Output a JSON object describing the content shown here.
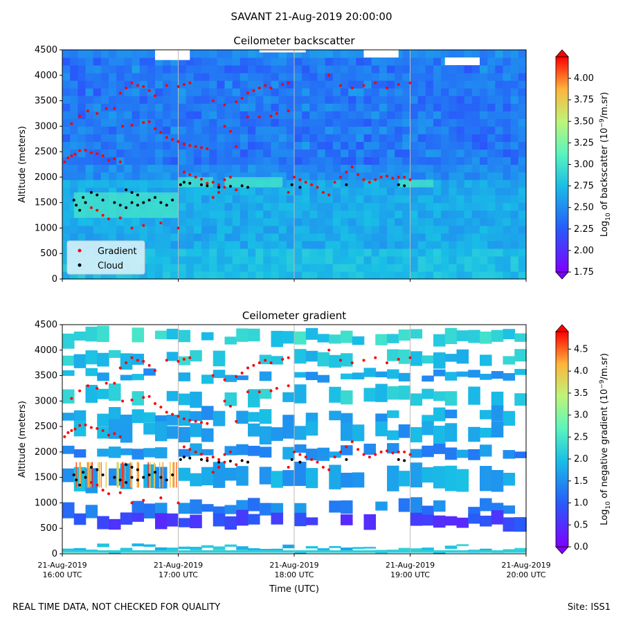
{
  "figure": {
    "title": "SAVANT 21-Aug-2019 20:00:00",
    "footer_left": "REAL TIME DATA, NOT CHECKED FOR QUALITY",
    "footer_right": "Site: ISS1"
  },
  "chart_data": [
    {
      "type": "heatmap",
      "title": "Ceilometer backscatter",
      "xlabel": "",
      "ylabel": "Altitude (meters)",
      "ylim": [
        0,
        4500
      ],
      "y_ticks": [
        "0",
        "500",
        "1000",
        "1500",
        "2000",
        "2500",
        "3000",
        "3500",
        "4000",
        "4500"
      ],
      "x_ticks": [],
      "grid": "vertical lines at hour ticks",
      "colorbar": {
        "label_prefix": "Log",
        "label_sub": "10",
        "label_mid": " of backscatter (10",
        "label_sup": "−9",
        "label_suffix": "/m.sr)",
        "range": [
          1.75,
          4.25
        ],
        "ticks": [
          "1.75",
          "2.00",
          "2.25",
          "2.50",
          "2.75",
          "3.00",
          "3.25",
          "3.50",
          "3.75",
          "4.00"
        ]
      },
      "legend": {
        "placement": "lower-left",
        "entries": [
          {
            "label": "Gradient",
            "color": "#ff0000"
          },
          {
            "label": "Cloud",
            "color": "#000000"
          }
        ]
      }
    },
    {
      "type": "heatmap",
      "title": "Ceilometer gradient",
      "xlabel": "Time (UTC)",
      "ylabel": "Altitude (meters)",
      "ylim": [
        0,
        4500
      ],
      "y_ticks": [
        "0",
        "500",
        "1000",
        "1500",
        "2000",
        "2500",
        "3000",
        "3500",
        "4000",
        "4500"
      ],
      "x_ticks": [
        {
          "l1": "21-Aug-2019",
          "l2": "16:00 UTC"
        },
        {
          "l1": "21-Aug-2019",
          "l2": "17:00 UTC"
        },
        {
          "l1": "21-Aug-2019",
          "l2": "18:00 UTC"
        },
        {
          "l1": "21-Aug-2019",
          "l2": "19:00 UTC"
        },
        {
          "l1": "21-Aug-2019",
          "l2": "20:00 UTC"
        }
      ],
      "grid": "vertical lines at hour ticks",
      "colorbar": {
        "label_prefix": "Log",
        "label_sub": "10",
        "label_mid": " of negative gradient (10",
        "label_sup": "−9",
        "label_suffix": "/m.sr)",
        "range": [
          0.0,
          4.9
        ],
        "ticks": [
          "0.0",
          "0.5",
          "1.0",
          "1.5",
          "2.0",
          "2.5",
          "3.0",
          "3.5",
          "4.0",
          "4.5"
        ]
      }
    }
  ],
  "series": {
    "gradient": [
      [
        0.02,
        2300
      ],
      [
        0.05,
        2380
      ],
      [
        0.08,
        2420
      ],
      [
        0.11,
        2450
      ],
      [
        0.15,
        2520
      ],
      [
        0.2,
        2530
      ],
      [
        0.25,
        2480
      ],
      [
        0.3,
        2460
      ],
      [
        0.35,
        2420
      ],
      [
        0.4,
        2330
      ],
      [
        0.45,
        2360
      ],
      [
        0.5,
        2300
      ],
      [
        0.08,
        3050
      ],
      [
        0.15,
        3200
      ],
      [
        0.22,
        3300
      ],
      [
        0.3,
        3250
      ],
      [
        0.38,
        3350
      ],
      [
        0.45,
        3350
      ],
      [
        0.52,
        3000
      ],
      [
        0.6,
        3020
      ],
      [
        0.7,
        3070
      ],
      [
        0.75,
        3090
      ],
      [
        0.8,
        2950
      ],
      [
        0.85,
        2880
      ],
      [
        0.9,
        2780
      ],
      [
        0.95,
        2740
      ],
      [
        1.0,
        2700
      ],
      [
        1.05,
        2650
      ],
      [
        1.1,
        2620
      ],
      [
        1.15,
        2600
      ],
      [
        1.2,
        2580
      ],
      [
        1.25,
        2560
      ],
      [
        0.5,
        3650
      ],
      [
        0.55,
        3750
      ],
      [
        0.6,
        3850
      ],
      [
        0.65,
        3800
      ],
      [
        0.7,
        3780
      ],
      [
        0.75,
        3700
      ],
      [
        0.8,
        3600
      ],
      [
        0.9,
        3800
      ],
      [
        1.0,
        3780
      ],
      [
        1.05,
        3820
      ],
      [
        1.1,
        3850
      ],
      [
        1.05,
        2100
      ],
      [
        1.1,
        2050
      ],
      [
        1.15,
        2000
      ],
      [
        1.2,
        1960
      ],
      [
        1.25,
        1880
      ],
      [
        1.3,
        1900
      ],
      [
        1.35,
        1850
      ],
      [
        1.4,
        1950
      ],
      [
        1.45,
        2000
      ],
      [
        1.3,
        3500
      ],
      [
        1.4,
        3420
      ],
      [
        1.5,
        3480
      ],
      [
        1.55,
        3550
      ],
      [
        1.6,
        3650
      ],
      [
        1.65,
        3700
      ],
      [
        1.7,
        3750
      ],
      [
        1.75,
        3800
      ],
      [
        1.8,
        3750
      ],
      [
        1.9,
        3820
      ],
      [
        1.95,
        3850
      ],
      [
        1.4,
        3000
      ],
      [
        1.45,
        2900
      ],
      [
        1.5,
        2600
      ],
      [
        1.6,
        3180
      ],
      [
        1.7,
        3180
      ],
      [
        1.8,
        3200
      ],
      [
        1.85,
        3250
      ],
      [
        1.95,
        3300
      ],
      [
        2.0,
        2000
      ],
      [
        2.05,
        1950
      ],
      [
        2.1,
        1900
      ],
      [
        2.15,
        1850
      ],
      [
        2.2,
        1800
      ],
      [
        2.25,
        1700
      ],
      [
        2.3,
        1650
      ],
      [
        2.35,
        1900
      ],
      [
        2.4,
        2000
      ],
      [
        2.45,
        2100
      ],
      [
        2.5,
        2200
      ],
      [
        2.55,
        2050
      ],
      [
        2.6,
        1950
      ],
      [
        2.65,
        1900
      ],
      [
        2.7,
        1950
      ],
      [
        2.75,
        2000
      ],
      [
        2.8,
        2020
      ],
      [
        2.85,
        1980
      ],
      [
        2.9,
        2000
      ],
      [
        2.95,
        2000
      ],
      [
        3.0,
        1950
      ],
      [
        2.3,
        4000
      ],
      [
        2.4,
        3800
      ],
      [
        2.5,
        3750
      ],
      [
        2.6,
        3800
      ],
      [
        2.7,
        3850
      ],
      [
        2.8,
        3750
      ],
      [
        2.9,
        3820
      ],
      [
        3.0,
        3850
      ],
      [
        0.2,
        1500
      ],
      [
        0.25,
        1400
      ],
      [
        0.3,
        1350
      ],
      [
        0.35,
        1250
      ],
      [
        0.4,
        1180
      ],
      [
        0.5,
        1200
      ],
      [
        0.6,
        1000
      ],
      [
        0.7,
        1050
      ],
      [
        0.85,
        1100
      ],
      [
        1.0,
        1000
      ],
      [
        1.3,
        1600
      ],
      [
        1.35,
        1700
      ],
      [
        1.4,
        1800
      ],
      [
        1.5,
        1750
      ],
      [
        1.6,
        1800
      ],
      [
        1.95,
        1700
      ]
    ],
    "cloud": [
      [
        0.1,
        1550
      ],
      [
        0.12,
        1450
      ],
      [
        0.15,
        1350
      ],
      [
        0.18,
        1600
      ],
      [
        0.2,
        1500
      ],
      [
        0.25,
        1700
      ],
      [
        0.3,
        1650
      ],
      [
        0.35,
        1550
      ],
      [
        0.45,
        1500
      ],
      [
        0.5,
        1450
      ],
      [
        0.55,
        1400
      ],
      [
        0.6,
        1500
      ],
      [
        0.65,
        1450
      ],
      [
        0.7,
        1500
      ],
      [
        0.75,
        1550
      ],
      [
        0.8,
        1600
      ],
      [
        0.85,
        1500
      ],
      [
        0.9,
        1450
      ],
      [
        0.95,
        1550
      ],
      [
        1.02,
        1850
      ],
      [
        1.05,
        1900
      ],
      [
        1.1,
        1880
      ],
      [
        1.2,
        1850
      ],
      [
        1.25,
        1830
      ],
      [
        1.35,
        1800
      ],
      [
        1.45,
        1820
      ],
      [
        1.55,
        1830
      ],
      [
        1.6,
        1800
      ],
      [
        1.98,
        1850
      ],
      [
        2.05,
        1800
      ],
      [
        2.45,
        1850
      ],
      [
        2.9,
        1850
      ],
      [
        2.95,
        1830
      ],
      [
        0.55,
        1750
      ],
      [
        0.6,
        1700
      ],
      [
        0.65,
        1650
      ]
    ]
  }
}
